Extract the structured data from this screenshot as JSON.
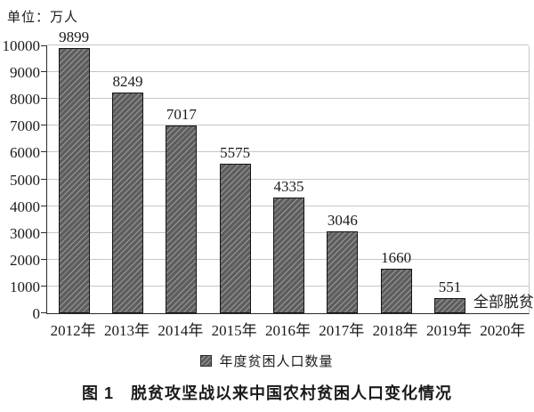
{
  "chart_data": {
    "type": "bar",
    "unit_label": "单位：万人",
    "categories": [
      "2012年",
      "2013年",
      "2014年",
      "2015年",
      "2016年",
      "2017年",
      "2018年",
      "2019年",
      "2020年"
    ],
    "values": [
      9899,
      8249,
      7017,
      5575,
      4335,
      3046,
      1660,
      551,
      null
    ],
    "annotations": [
      {
        "column": "2020年",
        "text": "全部脱贫"
      }
    ],
    "legend_label": "年度贫困人口数量",
    "title": "图 1　脱贫攻坚战以来中国农村贫困人口变化情况",
    "ylim": [
      0,
      10000
    ],
    "ytick_step": 1000,
    "grid": true,
    "legend_position": "bottom",
    "bar_fill_color": "#5e5e5e",
    "bar_hatch_color": "#9a9a9a",
    "bar_border_color": "#141414",
    "gridline_color": "#c6c6c6",
    "axis_color": "#2b2b2b"
  }
}
